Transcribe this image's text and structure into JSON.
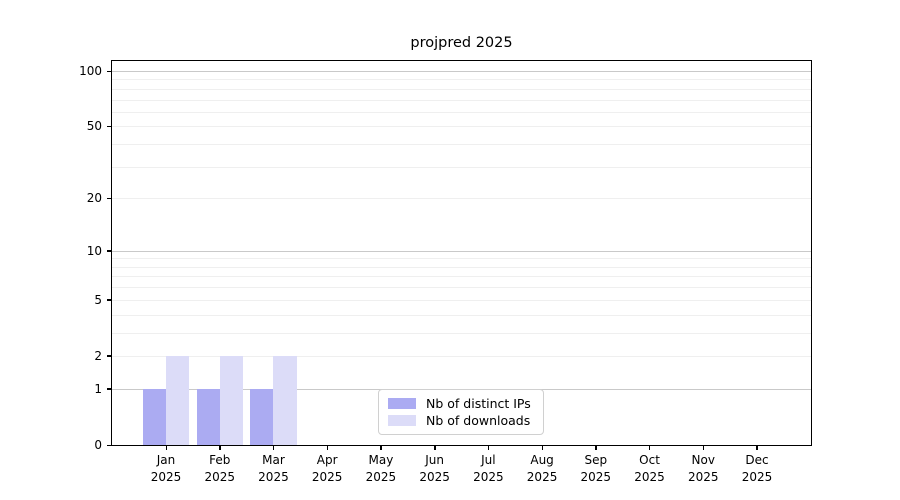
{
  "chart_data": {
    "type": "bar",
    "title": "projpred 2025",
    "categories": [
      "Jan",
      "Feb",
      "Mar",
      "Apr",
      "May",
      "Jun",
      "Jul",
      "Aug",
      "Sep",
      "Oct",
      "Nov",
      "Dec"
    ],
    "category_year": "2025",
    "series": [
      {
        "name": "Nb of distinct IPs",
        "color": "#ababf2",
        "values": [
          1,
          1,
          1,
          0,
          0,
          0,
          0,
          0,
          0,
          0,
          0,
          0
        ]
      },
      {
        "name": "Nb of downloads",
        "color": "#dcdcf8",
        "values": [
          2,
          2,
          2,
          0,
          0,
          0,
          0,
          0,
          0,
          0,
          0,
          0
        ]
      }
    ],
    "yscale": "log1p",
    "ylabel": "",
    "xlabel": "",
    "y_tick_values": [
      0,
      1,
      2,
      5,
      10,
      20,
      50,
      100
    ],
    "y_minor_grid_values": [
      2,
      3,
      4,
      5,
      6,
      7,
      8,
      9,
      20,
      30,
      40,
      50,
      60,
      70,
      80,
      90
    ],
    "y_major_grid_values": [
      1,
      10,
      100
    ],
    "ylim": [
      0,
      114
    ],
    "grid": "horizontal",
    "legend_position": "lower center"
  },
  "colors": {
    "bar_distinct_ips": "#ababf2",
    "bar_downloads": "#dcdcf8",
    "major_grid": "#c9c9c9",
    "minor_grid": "#efefef",
    "spine": "#000000",
    "text": "#000000",
    "legend_border": "#d0d0d0"
  }
}
